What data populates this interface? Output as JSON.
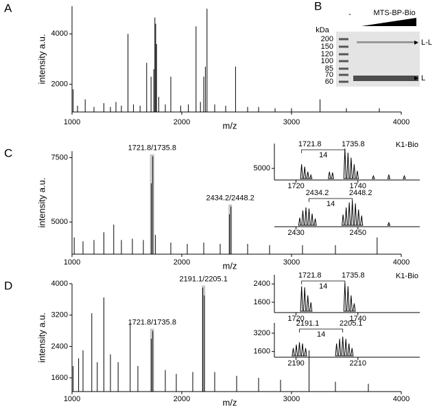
{
  "chart_data": [
    {
      "type": "spectrum",
      "panel": "A",
      "xlabel": "m/z",
      "ylabel": "intensity a.u.",
      "xlim": [
        1000,
        4000
      ],
      "xticks": [
        1000,
        2000,
        3000,
        4000
      ],
      "ylim": [
        900,
        5100
      ],
      "yticks": [
        2000,
        4000
      ],
      "x": [
        1010,
        1050,
        1120,
        1200,
        1290,
        1350,
        1400,
        1450,
        1510,
        1560,
        1620,
        1680,
        1720,
        1745,
        1755,
        1762,
        1770,
        1790,
        1850,
        1900,
        1990,
        2060,
        2130,
        2170,
        2200,
        2215,
        2230,
        2300,
        2400,
        2490,
        2600,
        2700,
        2850,
        3000,
        3260,
        3500,
        3800
      ],
      "values": [
        1800,
        1150,
        1400,
        1100,
        1250,
        1100,
        1300,
        1150,
        4000,
        1200,
        1150,
        2850,
        2300,
        2600,
        4650,
        4400,
        3600,
        1500,
        1200,
        2300,
        1150,
        1200,
        4300,
        1300,
        2300,
        2700,
        5000,
        1200,
        1150,
        2700,
        1100,
        1100,
        1050,
        1050,
        1400,
        1050,
        1050
      ]
    },
    {
      "type": "spectrum",
      "panel": "C",
      "xlabel": "m/z",
      "ylabel": "intensity a.u.",
      "xlim": [
        1000,
        4000
      ],
      "xticks": [
        1000,
        2000,
        3000,
        4000
      ],
      "ylim": [
        3750,
        7750
      ],
      "yticks": [
        5000,
        7500
      ],
      "x": [
        1020,
        1100,
        1200,
        1290,
        1380,
        1450,
        1550,
        1650,
        1721.8,
        1735.8,
        1760,
        1900,
        2050,
        2200,
        2350,
        2434.2,
        2448.2,
        2600,
        2800,
        3100,
        3400,
        3780
      ],
      "values": [
        4400,
        4250,
        4300,
        4600,
        4900,
        4300,
        4350,
        4300,
        6500,
        7550,
        4500,
        4200,
        4150,
        4200,
        4150,
        5300,
        5600,
        4150,
        4100,
        4100,
        4100,
        4400
      ],
      "annotations": [
        {
          "label": "1721.8/1735.8",
          "range": [
            1710,
            1750
          ]
        },
        {
          "label": "2434.2/2448.2",
          "range": [
            2425,
            2458
          ]
        }
      ]
    },
    {
      "type": "spectrum",
      "title": "K1-Bio",
      "xlim": [
        1713,
        1760
      ],
      "xticks": [
        1720,
        1740
      ],
      "ylim": [
        3600,
        8000
      ],
      "yticks": [
        5000
      ],
      "x": [
        1721.8,
        1722.8,
        1723.8,
        1724.8,
        1730.8,
        1731.8,
        1735.8,
        1736.8,
        1737.8,
        1738.8,
        1739.8,
        1745,
        1750,
        1755
      ],
      "values": [
        5500,
        5200,
        4600,
        4200,
        4600,
        4500,
        7400,
        6900,
        6300,
        5500,
        4700,
        4100,
        4200,
        4100
      ],
      "pairs": [
        {
          "from": 1721.8,
          "to": 1735.8,
          "label": "14"
        }
      ]
    },
    {
      "type": "spectrum",
      "xlim": [
        2423,
        2470
      ],
      "xticks": [
        2430,
        2450
      ],
      "ylim": [
        3600,
        7000
      ],
      "yticks": [],
      "x": [
        2431.2,
        2432.2,
        2433.2,
        2434.2,
        2435.2,
        2436.2,
        2445.2,
        2446.2,
        2447.2,
        2448.2,
        2449.2,
        2450.2,
        2451.2,
        2460
      ],
      "values": [
        4500,
        5200,
        5500,
        5400,
        4900,
        4400,
        4800,
        5500,
        6000,
        6200,
        5900,
        5300,
        4700,
        4000
      ],
      "pairs": [
        {
          "from": 2434.2,
          "to": 2448.2,
          "label": "14"
        }
      ]
    },
    {
      "type": "spectrum",
      "panel": "D",
      "xlabel": "m/z",
      "ylabel": "intensity a.u.",
      "xlim": [
        1000,
        4000
      ],
      "xticks": [
        1000,
        2000,
        3000,
        4000
      ],
      "ylim": [
        1250,
        4000
      ],
      "yticks": [
        1600,
        2400,
        3200,
        4000
      ],
      "x": [
        1010,
        1060,
        1100,
        1180,
        1230,
        1290,
        1350,
        1420,
        1530,
        1600,
        1721.8,
        1735.8,
        1850,
        1950,
        2100,
        2191.1,
        2205.1,
        2300,
        2500,
        2700,
        2900,
        3160,
        3400,
        3700
      ],
      "values": [
        1900,
        2100,
        2300,
        3250,
        2000,
        3650,
        2200,
        2000,
        3000,
        1900,
        2600,
        2800,
        1800,
        1700,
        1750,
        3900,
        3700,
        1750,
        1650,
        1600,
        1550,
        2300,
        1500,
        1450
      ],
      "annotations": [
        {
          "label": "1721.8/1735.8",
          "range": [
            1712,
            1748
          ]
        },
        {
          "label": "2191.1/2205.1",
          "range": [
            2182,
            2214
          ]
        }
      ]
    },
    {
      "type": "spectrum",
      "title": "K1-Bio",
      "xlim": [
        1713,
        1760
      ],
      "xticks": [
        1720,
        1740
      ],
      "ylim": [
        1150,
        2800
      ],
      "yticks": [
        1600,
        2400
      ],
      "x": [
        1721.8,
        1722.8,
        1723.8,
        1724.8,
        1735.8,
        1736.8,
        1737.8,
        1738.8
      ],
      "values": [
        2300,
        2250,
        1900,
        1600,
        2450,
        2300,
        1900,
        1550
      ],
      "pairs": [
        {
          "from": 1721.8,
          "to": 1735.8,
          "label": "14"
        }
      ]
    },
    {
      "type": "spectrum",
      "xlim": [
        2183,
        2230
      ],
      "xticks": [
        2190,
        2210
      ],
      "ylim": [
        1100,
        4100
      ],
      "yticks": [
        1600,
        3200
      ],
      "x": [
        2189.1,
        2190.1,
        2191.1,
        2192.1,
        2193.1,
        2203.1,
        2204.1,
        2205.1,
        2206.1,
        2207.1,
        2208.1
      ],
      "values": [
        1900,
        2200,
        2400,
        2300,
        1900,
        2300,
        2700,
        2900,
        2700,
        2300,
        1900
      ],
      "pairs": [
        {
          "from": 2191.1,
          "to": 2205.1,
          "label": "14"
        }
      ]
    }
  ],
  "gel": {
    "label": "B",
    "lane_label": "-",
    "title": "MTS-BP-Bio",
    "unit": "kDa",
    "markers": [
      200,
      150,
      120,
      100,
      85,
      70,
      60
    ],
    "bands": [
      "L-L",
      "L"
    ]
  }
}
